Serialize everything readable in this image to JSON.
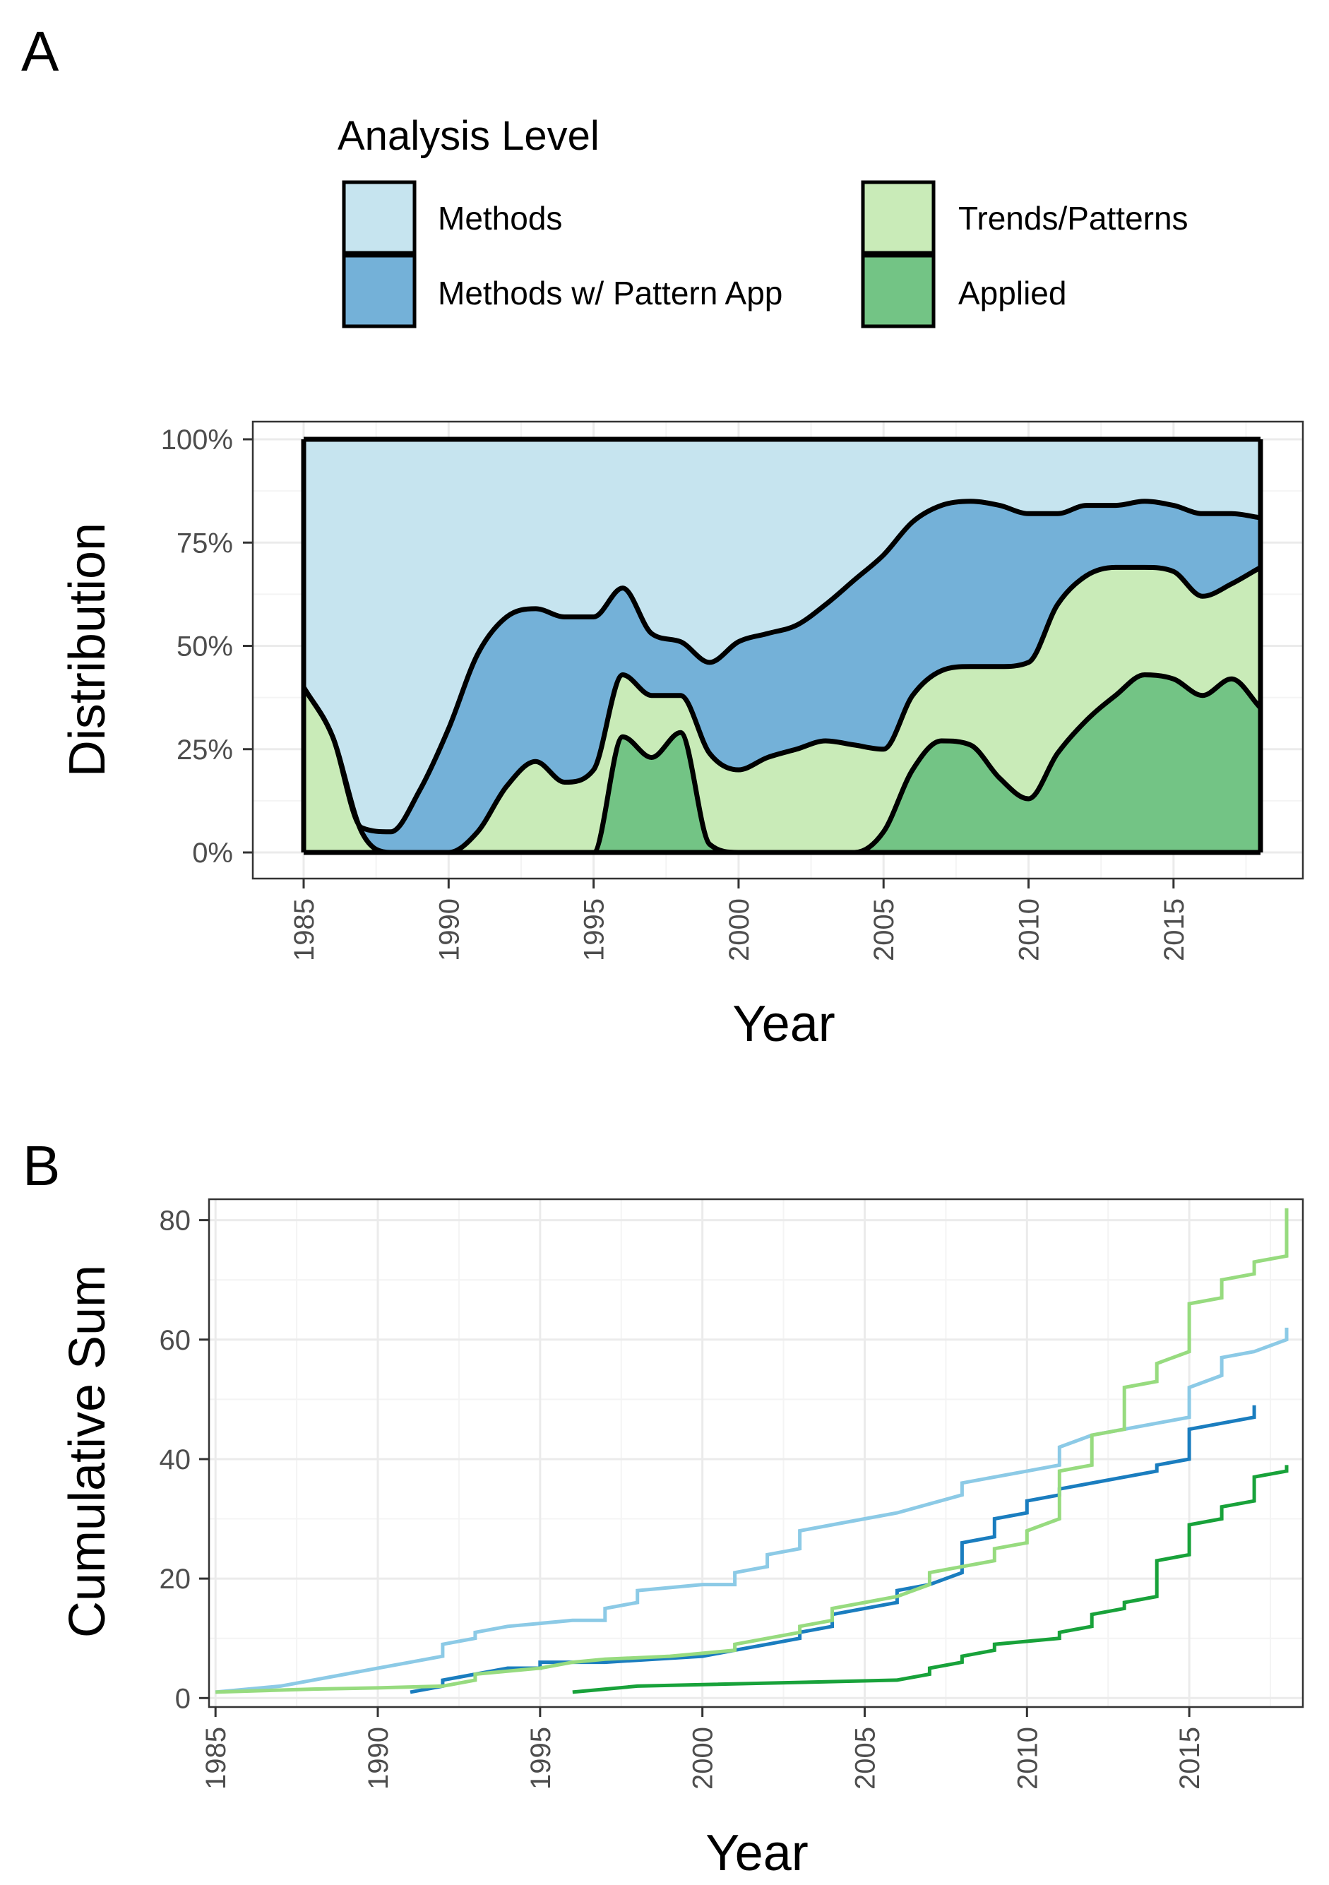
{
  "colors": {
    "Methods": "#c6e4ef",
    "Methods w/ Pattern App": "#74b1d8",
    "Trends/Patterns": "#c9ebb8",
    "Applied": "#73c485",
    "line_Methods": "#8ccae6",
    "line_Methods w/ Pattern App": "#1a7dbf",
    "line_Trends/Patterns": "#97db7f",
    "line_Applied": "#18a23a"
  },
  "legend": {
    "title": "Analysis Level",
    "items": [
      {
        "label": "Methods",
        "key": "Methods"
      },
      {
        "label": "Trends/Patterns",
        "key": "Trends/Patterns"
      },
      {
        "label": "Methods w/ Pattern App",
        "key": "Methods w/ Pattern App"
      },
      {
        "label": "Applied",
        "key": "Applied"
      }
    ]
  },
  "chart_data": [
    {
      "panel": "A",
      "type": "area",
      "stacking": "fill",
      "xlabel": "Year",
      "ylabel": "Distribution",
      "xlim": [
        1985,
        2018
      ],
      "ylim": [
        0,
        1
      ],
      "x_ticks": [
        "1985",
        "1990",
        "1995",
        "2000",
        "2005",
        "2010",
        "2015"
      ],
      "y_ticks": [
        "0%",
        "25%",
        "50%",
        "75%",
        "100%"
      ],
      "x": [
        1985,
        1986,
        1987,
        1988,
        1989,
        1990,
        1991,
        1992,
        1993,
        1994,
        1995,
        1996,
        1997,
        1998,
        1999,
        2000,
        2001,
        2002,
        2003,
        2004,
        2005,
        2006,
        2007,
        2008,
        2009,
        2010,
        2011,
        2012,
        2013,
        2014,
        2015,
        2016,
        2017,
        2018
      ],
      "cumulative_boundaries": [
        {
          "name": "Applied",
          "values": [
            0,
            0,
            0,
            0,
            0,
            0,
            0,
            0,
            0,
            0,
            0,
            0.28,
            0.23,
            0.29,
            0.02,
            0,
            0,
            0,
            0,
            0,
            0.05,
            0.2,
            0.27,
            0.26,
            0.18,
            0.13,
            0.24,
            0.32,
            0.38,
            0.43,
            0.42,
            0.38,
            0.42,
            0.35
          ]
        },
        {
          "name": "Trends/Patterns",
          "values": [
            0.4,
            0.28,
            0.05,
            0,
            0,
            0,
            0.05,
            0.16,
            0.22,
            0.17,
            0.2,
            0.43,
            0.38,
            0.38,
            0.24,
            0.2,
            0.23,
            0.25,
            0.27,
            0.26,
            0.25,
            0.38,
            0.44,
            0.45,
            0.45,
            0.46,
            0.6,
            0.67,
            0.69,
            0.69,
            0.68,
            0.62,
            0.65,
            0.69
          ]
        },
        {
          "name": "Methods w/ Pattern App",
          "values": [
            0.4,
            0.28,
            0.06,
            0.05,
            0.15,
            0.3,
            0.48,
            0.57,
            0.59,
            0.57,
            0.57,
            0.64,
            0.53,
            0.51,
            0.46,
            0.51,
            0.53,
            0.55,
            0.6,
            0.66,
            0.72,
            0.8,
            0.84,
            0.85,
            0.84,
            0.82,
            0.82,
            0.84,
            0.84,
            0.85,
            0.84,
            0.82,
            0.82,
            0.81
          ]
        },
        {
          "name": "Methods",
          "values": [
            1,
            1,
            1,
            1,
            1,
            1,
            1,
            1,
            1,
            1,
            1,
            1,
            1,
            1,
            1,
            1,
            1,
            1,
            1,
            1,
            1,
            1,
            1,
            1,
            1,
            1,
            1,
            1,
            1,
            1,
            1,
            1,
            1,
            1
          ]
        }
      ]
    },
    {
      "panel": "B",
      "type": "line",
      "step": true,
      "xlabel": "Year",
      "ylabel": "Cumulative Sum",
      "xlim": [
        1984.8,
        2018.5
      ],
      "ylim": [
        -1.5,
        83.5
      ],
      "x_ticks": [
        "1985",
        "1990",
        "1995",
        "2000",
        "2005",
        "2010",
        "2015"
      ],
      "y_ticks": [
        "0",
        "20",
        "40",
        "60",
        "80"
      ],
      "series": [
        {
          "name": "Methods",
          "key": "line_Methods",
          "points": [
            [
              1985,
              1
            ],
            [
              1987,
              2
            ],
            [
              1989,
              4
            ],
            [
              1990,
              5
            ],
            [
              1991,
              6
            ],
            [
              1992,
              7
            ],
            [
              1992,
              9
            ],
            [
              1993,
              10
            ],
            [
              1993,
              11
            ],
            [
              1994,
              12
            ],
            [
              1996,
              13
            ],
            [
              1997,
              13
            ],
            [
              1997,
              15
            ],
            [
              1998,
              16
            ],
            [
              1998,
              18
            ],
            [
              2000,
              19
            ],
            [
              2001,
              19
            ],
            [
              2001,
              21
            ],
            [
              2002,
              22
            ],
            [
              2002,
              24
            ],
            [
              2003,
              25
            ],
            [
              2003,
              28
            ],
            [
              2004,
              29
            ],
            [
              2005,
              30
            ],
            [
              2006,
              31
            ],
            [
              2008,
              34
            ],
            [
              2008,
              36
            ],
            [
              2010,
              38
            ],
            [
              2011,
              39
            ],
            [
              2011,
              42
            ],
            [
              2012,
              44
            ],
            [
              2014,
              46
            ],
            [
              2015,
              47
            ],
            [
              2015,
              52
            ],
            [
              2016,
              54
            ],
            [
              2016,
              57
            ],
            [
              2017,
              58
            ],
            [
              2018,
              60
            ],
            [
              2018,
              62
            ]
          ]
        },
        {
          "name": "Methods w/ Pattern App",
          "key": "line_Methods w/ Pattern App",
          "points": [
            [
              1991,
              1
            ],
            [
              1992,
              2
            ],
            [
              1992,
              3
            ],
            [
              1993,
              4
            ],
            [
              1994,
              5
            ],
            [
              1995,
              5
            ],
            [
              1995,
              6
            ],
            [
              1997,
              6
            ],
            [
              2000,
              7
            ],
            [
              2001,
              8
            ],
            [
              2002,
              9
            ],
            [
              2003,
              10
            ],
            [
              2003,
              11
            ],
            [
              2004,
              12
            ],
            [
              2004,
              14
            ],
            [
              2005,
              15
            ],
            [
              2006,
              16
            ],
            [
              2006,
              18
            ],
            [
              2007,
              19
            ],
            [
              2008,
              21
            ],
            [
              2008,
              26
            ],
            [
              2009,
              27
            ],
            [
              2009,
              30
            ],
            [
              2010,
              31
            ],
            [
              2010,
              33
            ],
            [
              2011,
              34
            ],
            [
              2011,
              35
            ],
            [
              2014,
              38
            ],
            [
              2014,
              39
            ],
            [
              2015,
              40
            ],
            [
              2015,
              45
            ],
            [
              2017,
              47
            ],
            [
              2017,
              49
            ]
          ]
        },
        {
          "name": "Trends/Patterns",
          "key": "line_Trends/Patterns",
          "points": [
            [
              1985,
              1
            ],
            [
              1988,
              1.5
            ],
            [
              1990,
              1.7
            ],
            [
              1992,
              2
            ],
            [
              1993,
              3
            ],
            [
              1993,
              4
            ],
            [
              1995,
              5
            ],
            [
              1996,
              6
            ],
            [
              1997,
              6.5
            ],
            [
              1999,
              7
            ],
            [
              2000,
              7.5
            ],
            [
              2001,
              8
            ],
            [
              2001,
              9
            ],
            [
              2003,
              11
            ],
            [
              2003,
              12
            ],
            [
              2004,
              13
            ],
            [
              2004,
              15
            ],
            [
              2005,
              16
            ],
            [
              2006,
              17
            ],
            [
              2007,
              19
            ],
            [
              2007,
              21
            ],
            [
              2008,
              22
            ],
            [
              2009,
              23
            ],
            [
              2009,
              25
            ],
            [
              2010,
              26
            ],
            [
              2010,
              28
            ],
            [
              2011,
              30
            ],
            [
              2011,
              38
            ],
            [
              2012,
              39
            ],
            [
              2012,
              44
            ],
            [
              2013,
              45
            ],
            [
              2013,
              52
            ],
            [
              2014,
              53
            ],
            [
              2014,
              56
            ],
            [
              2015,
              58
            ],
            [
              2015,
              66
            ],
            [
              2016,
              67
            ],
            [
              2016,
              70
            ],
            [
              2017,
              71
            ],
            [
              2017,
              73
            ],
            [
              2018,
              74
            ],
            [
              2018,
              82
            ]
          ]
        },
        {
          "name": "Applied",
          "key": "line_Applied",
          "points": [
            [
              1996,
              1
            ],
            [
              1998,
              2
            ],
            [
              2006,
              3
            ],
            [
              2007,
              4
            ],
            [
              2007,
              5
            ],
            [
              2008,
              6
            ],
            [
              2008,
              7
            ],
            [
              2009,
              8
            ],
            [
              2009,
              9
            ],
            [
              2011,
              10
            ],
            [
              2011,
              11
            ],
            [
              2012,
              12
            ],
            [
              2012,
              14
            ],
            [
              2013,
              15
            ],
            [
              2013,
              16
            ],
            [
              2014,
              17
            ],
            [
              2014,
              19
            ],
            [
              2014,
              23
            ],
            [
              2015,
              24
            ],
            [
              2015,
              29
            ],
            [
              2016,
              30
            ],
            [
              2016,
              32
            ],
            [
              2017,
              33
            ],
            [
              2017,
              37
            ],
            [
              2018,
              38
            ],
            [
              2018,
              39
            ]
          ]
        }
      ]
    }
  ]
}
